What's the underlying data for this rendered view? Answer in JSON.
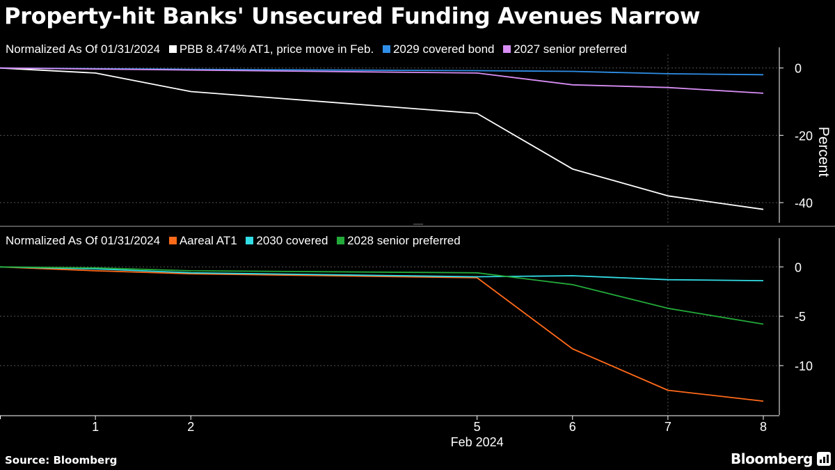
{
  "title": "Property-hit Banks' Unsecured Funding Avenues Narrow",
  "source": "Source: Bloomberg",
  "brand": "Bloomberg",
  "brand_icon": "bloomberg-terminal-icon",
  "chart_data": [
    {
      "type": "line",
      "legend_prefix": "Normalized As Of 01/31/2024",
      "ylabel": "Percent",
      "x": [
        0,
        1,
        2,
        5,
        6,
        7,
        8
      ],
      "ylim": [
        -46,
        2
      ],
      "yticks": [
        0,
        -20,
        -40
      ],
      "ytick_labels": [
        "0",
        "-20",
        "-40"
      ],
      "series": [
        {
          "name": "PBB 8.474% AT1, price move in Feb.",
          "color": "#ffffff",
          "values": [
            0,
            -1.5,
            -7,
            -13.5,
            -30,
            -38,
            -42
          ]
        },
        {
          "name": "2029 covered bond",
          "color": "#2f8fe8",
          "values": [
            0,
            -0.2,
            -0.4,
            -0.8,
            -1.0,
            -1.7,
            -2.0
          ]
        },
        {
          "name": "2027 senior preferred",
          "color": "#d88ef5",
          "values": [
            0,
            -0.3,
            -0.6,
            -1.5,
            -5.0,
            -5.8,
            -7.5
          ]
        }
      ]
    },
    {
      "type": "line",
      "legend_prefix": "Normalized As Of 01/31/2024",
      "ylabel": "",
      "x": [
        0,
        1,
        2,
        5,
        6,
        7,
        8
      ],
      "ylim": [
        -15,
        1.5
      ],
      "yticks": [
        0,
        -5,
        -10
      ],
      "ytick_labels": [
        "0",
        "-5",
        "-10"
      ],
      "series": [
        {
          "name": "Aareal AT1",
          "color": "#ff6a1a",
          "values": [
            0,
            -0.4,
            -0.7,
            -1.1,
            -8.3,
            -12.5,
            -13.6
          ]
        },
        {
          "name": "2030 covered",
          "color": "#33dde6",
          "values": [
            0,
            -0.2,
            -0.6,
            -1.0,
            -0.9,
            -1.3,
            -1.4
          ]
        },
        {
          "name": "2028 senior preferred",
          "color": "#23a93a",
          "values": [
            0,
            -0.1,
            -0.4,
            -0.6,
            -1.8,
            -4.2,
            -5.8
          ]
        }
      ]
    }
  ],
  "x_axis": {
    "ticks": [
      1,
      2,
      5,
      6,
      7,
      8
    ],
    "tick_labels": [
      "1",
      "2",
      "5",
      "6",
      "7",
      "8"
    ],
    "label": "Feb 2024",
    "gridline_at": 7
  }
}
